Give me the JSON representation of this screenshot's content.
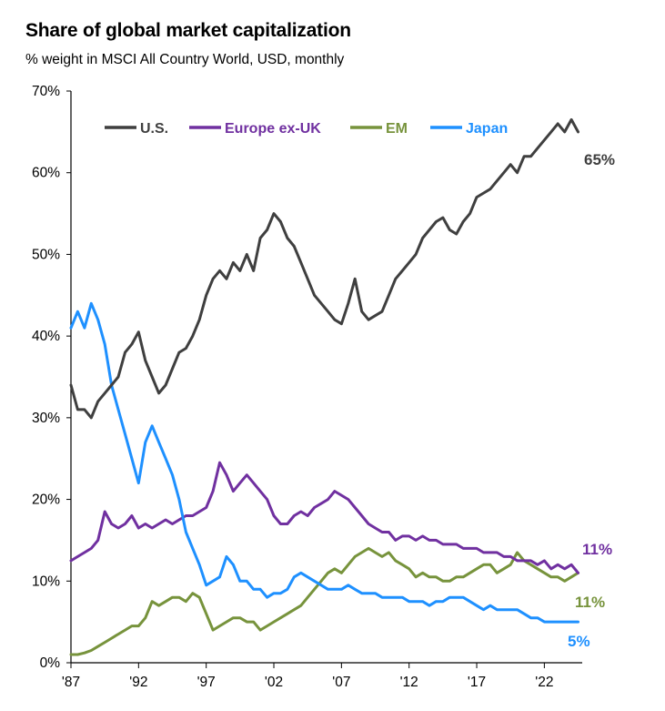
{
  "chart_data": {
    "type": "line",
    "title": "Share of global market capitalization",
    "subtitle": "% weight in MSCI All Country World, USD, monthly",
    "xlabel": "",
    "ylabel": "",
    "xlim": [
      1987,
      2024.8
    ],
    "ylim": [
      0,
      70
    ],
    "x_ticks": [
      1987,
      1992,
      1997,
      2002,
      2007,
      2012,
      2017,
      2022
    ],
    "x_tick_labels": [
      "'87",
      "'92",
      "'97",
      "'02",
      "'07",
      "'12",
      "'17",
      "'22"
    ],
    "y_ticks": [
      0,
      10,
      20,
      30,
      40,
      50,
      60,
      70
    ],
    "y_tick_labels": [
      "0%",
      "10%",
      "20%",
      "30%",
      "40%",
      "50%",
      "60%",
      "70%"
    ],
    "legend_position": "top",
    "series": [
      {
        "name": "U.S.",
        "color": "#3f3f3f",
        "end_label": "65%",
        "x": [
          1987.0,
          1987.5,
          1988.0,
          1988.5,
          1989.0,
          1989.5,
          1990.0,
          1990.5,
          1991.0,
          1991.5,
          1992.0,
          1992.5,
          1993.0,
          1993.5,
          1994.0,
          1994.5,
          1995.0,
          1995.5,
          1996.0,
          1996.5,
          1997.0,
          1997.5,
          1998.0,
          1998.5,
          1999.0,
          1999.5,
          2000.0,
          2000.5,
          2001.0,
          2001.5,
          2002.0,
          2002.5,
          2003.0,
          2003.5,
          2004.0,
          2004.5,
          2005.0,
          2005.5,
          2006.0,
          2006.5,
          2007.0,
          2007.5,
          2008.0,
          2008.5,
          2009.0,
          2009.5,
          2010.0,
          2010.5,
          2011.0,
          2011.5,
          2012.0,
          2012.5,
          2013.0,
          2013.5,
          2014.0,
          2014.5,
          2015.0,
          2015.5,
          2016.0,
          2016.5,
          2017.0,
          2017.5,
          2018.0,
          2018.5,
          2019.0,
          2019.5,
          2020.0,
          2020.5,
          2021.0,
          2021.5,
          2022.0,
          2022.5,
          2023.0,
          2023.5,
          2024.0,
          2024.5
        ],
        "values": [
          34,
          31,
          31,
          30,
          32,
          33,
          34,
          35,
          38,
          39,
          40.5,
          37,
          35,
          33,
          34,
          36,
          38,
          38.5,
          40,
          42,
          45,
          47,
          48,
          47,
          49,
          48,
          50,
          48,
          52,
          53,
          55,
          54,
          52,
          51,
          49,
          47,
          45,
          44,
          43,
          42,
          41.5,
          44,
          47,
          43,
          42,
          42.5,
          43,
          45,
          47,
          48,
          49,
          50,
          52,
          53,
          54,
          54.5,
          53,
          52.5,
          54,
          55,
          57,
          57.5,
          58,
          59,
          60,
          61,
          60,
          62,
          62,
          63,
          64,
          65,
          66,
          65,
          66.5,
          65
        ]
      },
      {
        "name": "Europe ex-UK",
        "color": "#7030a0",
        "end_label": "11%",
        "x": [
          1987.0,
          1987.5,
          1988.0,
          1988.5,
          1989.0,
          1989.5,
          1990.0,
          1990.5,
          1991.0,
          1991.5,
          1992.0,
          1992.5,
          1993.0,
          1993.5,
          1994.0,
          1994.5,
          1995.0,
          1995.5,
          1996.0,
          1996.5,
          1997.0,
          1997.5,
          1998.0,
          1998.5,
          1999.0,
          1999.5,
          2000.0,
          2000.5,
          2001.0,
          2001.5,
          2002.0,
          2002.5,
          2003.0,
          2003.5,
          2004.0,
          2004.5,
          2005.0,
          2005.5,
          2006.0,
          2006.5,
          2007.0,
          2007.5,
          2008.0,
          2008.5,
          2009.0,
          2009.5,
          2010.0,
          2010.5,
          2011.0,
          2011.5,
          2012.0,
          2012.5,
          2013.0,
          2013.5,
          2014.0,
          2014.5,
          2015.0,
          2015.5,
          2016.0,
          2016.5,
          2017.0,
          2017.5,
          2018.0,
          2018.5,
          2019.0,
          2019.5,
          2020.0,
          2020.5,
          2021.0,
          2021.5,
          2022.0,
          2022.5,
          2023.0,
          2023.5,
          2024.0,
          2024.5
        ],
        "values": [
          12.5,
          13,
          13.5,
          14,
          15,
          18.5,
          17,
          16.5,
          17,
          18,
          16.5,
          17,
          16.5,
          17,
          17.5,
          17,
          17.5,
          18,
          18,
          18.5,
          19,
          21,
          24.5,
          23,
          21,
          22,
          23,
          22,
          21,
          20,
          18,
          17,
          17,
          18,
          18.5,
          18,
          19,
          19.5,
          20,
          21,
          20.5,
          20,
          19,
          18,
          17,
          16.5,
          16,
          16,
          15,
          15.5,
          15.5,
          15,
          15.5,
          15,
          15,
          14.5,
          14.5,
          14.5,
          14,
          14,
          14,
          13.5,
          13.5,
          13.5,
          13,
          13,
          12.5,
          12.5,
          12.5,
          12,
          12.5,
          11.5,
          12,
          11.5,
          12,
          11
        ]
      },
      {
        "name": "EM",
        "color": "#77933c",
        "end_label": "11%",
        "x": [
          1987.0,
          1987.5,
          1988.0,
          1988.5,
          1989.0,
          1989.5,
          1990.0,
          1990.5,
          1991.0,
          1991.5,
          1992.0,
          1992.5,
          1993.0,
          1993.5,
          1994.0,
          1994.5,
          1995.0,
          1995.5,
          1996.0,
          1996.5,
          1997.0,
          1997.5,
          1998.0,
          1998.5,
          1999.0,
          1999.5,
          2000.0,
          2000.5,
          2001.0,
          2001.5,
          2002.0,
          2002.5,
          2003.0,
          2003.5,
          2004.0,
          2004.5,
          2005.0,
          2005.5,
          2006.0,
          2006.5,
          2007.0,
          2007.5,
          2008.0,
          2008.5,
          2009.0,
          2009.5,
          2010.0,
          2010.5,
          2011.0,
          2011.5,
          2012.0,
          2012.5,
          2013.0,
          2013.5,
          2014.0,
          2014.5,
          2015.0,
          2015.5,
          2016.0,
          2016.5,
          2017.0,
          2017.5,
          2018.0,
          2018.5,
          2019.0,
          2019.5,
          2020.0,
          2020.5,
          2021.0,
          2021.5,
          2022.0,
          2022.5,
          2023.0,
          2023.5,
          2024.0,
          2024.5
        ],
        "values": [
          1,
          1,
          1.2,
          1.5,
          2,
          2.5,
          3,
          3.5,
          4,
          4.5,
          4.5,
          5.5,
          7.5,
          7,
          7.5,
          8,
          8,
          7.5,
          8.5,
          8,
          6,
          4,
          4.5,
          5,
          5.5,
          5.5,
          5,
          5,
          4,
          4.5,
          5,
          5.5,
          6,
          6.5,
          7,
          8,
          9,
          10,
          11,
          11.5,
          11,
          12,
          13,
          13.5,
          14,
          13.5,
          13,
          13.5,
          12.5,
          12,
          11.5,
          10.5,
          11,
          10.5,
          10.5,
          10,
          10,
          10.5,
          10.5,
          11,
          11.5,
          12,
          12,
          11,
          11.5,
          12,
          13.5,
          12.5,
          12,
          11.5,
          11,
          10.5,
          10.5,
          10,
          10.5,
          11
        ]
      },
      {
        "name": "Japan",
        "color": "#1e90ff",
        "end_label": "5%",
        "x": [
          1987.0,
          1987.5,
          1988.0,
          1988.5,
          1989.0,
          1989.5,
          1990.0,
          1990.5,
          1991.0,
          1991.5,
          1992.0,
          1992.5,
          1993.0,
          1993.5,
          1994.0,
          1994.5,
          1995.0,
          1995.5,
          1996.0,
          1996.5,
          1997.0,
          1997.5,
          1998.0,
          1998.5,
          1999.0,
          1999.5,
          2000.0,
          2000.5,
          2001.0,
          2001.5,
          2002.0,
          2002.5,
          2003.0,
          2003.5,
          2004.0,
          2004.5,
          2005.0,
          2005.5,
          2006.0,
          2006.5,
          2007.0,
          2007.5,
          2008.0,
          2008.5,
          2009.0,
          2009.5,
          2010.0,
          2010.5,
          2011.0,
          2011.5,
          2012.0,
          2012.5,
          2013.0,
          2013.5,
          2014.0,
          2014.5,
          2015.0,
          2015.5,
          2016.0,
          2016.5,
          2017.0,
          2017.5,
          2018.0,
          2018.5,
          2019.0,
          2019.5,
          2020.0,
          2020.5,
          2021.0,
          2021.5,
          2022.0,
          2022.5,
          2023.0,
          2023.5,
          2024.0,
          2024.5
        ],
        "values": [
          41,
          43,
          41,
          44,
          42,
          39,
          34,
          31,
          28,
          25,
          22,
          27,
          29,
          27,
          25,
          23,
          20,
          16,
          14,
          12,
          9.5,
          10,
          10.5,
          13,
          12,
          10,
          10,
          9,
          9,
          8,
          8.5,
          8.5,
          9,
          10.5,
          11,
          10.5,
          10,
          9.5,
          9,
          9,
          9,
          9.5,
          9,
          8.5,
          8.5,
          8.5,
          8,
          8,
          8,
          8,
          7.5,
          7.5,
          7.5,
          7,
          7.5,
          7.5,
          8,
          8,
          8,
          7.5,
          7,
          6.5,
          7,
          6.5,
          6.5,
          6.5,
          6.5,
          6,
          5.5,
          5.5,
          5,
          5,
          5,
          5,
          5,
          5
        ]
      }
    ]
  }
}
